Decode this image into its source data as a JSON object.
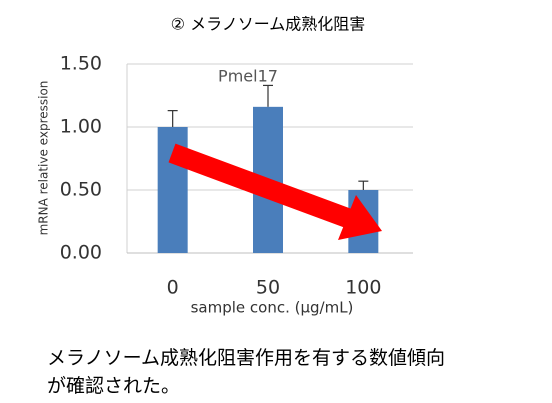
{
  "chart_data": {
    "type": "bar",
    "title": "② メラノソーム成熟化阻害",
    "subtitle": "Pmel17",
    "x_label": "sample conc. (μg/mL)",
    "y_label": "mRNA relative expression",
    "categories": [
      "0",
      "50",
      "100"
    ],
    "values": [
      1.0,
      1.16,
      0.5
    ],
    "errors": [
      0.13,
      0.17,
      0.07
    ],
    "color": "#4a7ebb",
    "ylim": [
      0,
      1.5
    ],
    "yticks": [
      {
        "value": 0,
        "label": "0.00"
      },
      {
        "value": 0.5,
        "label": "0.50"
      },
      {
        "value": 1.0,
        "label": "1.00"
      },
      {
        "value": 1.5,
        "label": "1.50"
      }
    ],
    "grid": true
  },
  "caption": [
    "メラノソーム成熟化阻害作用を有する数値傾向",
    "が確認された。"
  ]
}
